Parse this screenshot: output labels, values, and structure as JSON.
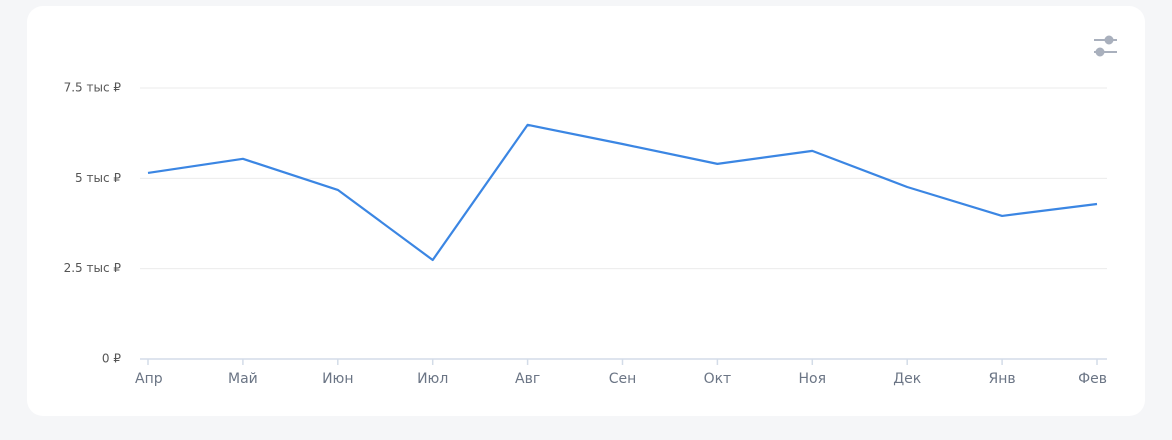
{
  "chart_data": {
    "type": "line",
    "categories": [
      "Апр",
      "Май",
      "Июн",
      "Июл",
      "Авг",
      "Сен",
      "Окт",
      "Ноя",
      "Дек",
      "Янв",
      "Фев"
    ],
    "series": [
      {
        "color": "#3b86e3",
        "values": [
          5150,
          5540,
          4680,
          2740,
          6480,
          5950,
          5400,
          5760,
          4760,
          3960,
          4290
        ]
      }
    ],
    "ylim": [
      0,
      7500
    ],
    "yticks": [
      {
        "value": 0,
        "label": "0 ₽"
      },
      {
        "value": 2500,
        "label": "2.5 тыс ₽"
      },
      {
        "value": 5000,
        "label": "5 тыс ₽"
      },
      {
        "value": 7500,
        "label": "7.5 тыс ₽"
      }
    ],
    "grid": true
  }
}
